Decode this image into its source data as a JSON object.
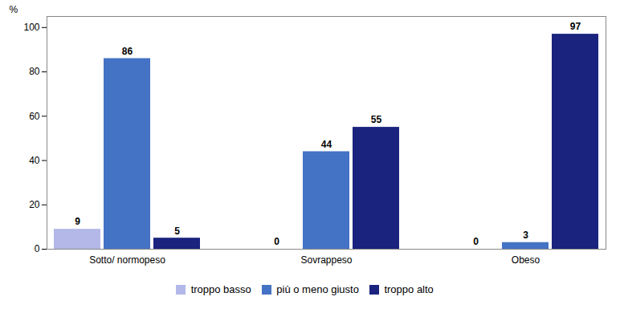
{
  "chart_data": {
    "type": "bar",
    "categories": [
      "Sotto/ normopeso",
      "Sovrappeso",
      "Obeso"
    ],
    "series": [
      {
        "name": "troppo basso",
        "color": "#b3b8e8",
        "values": [
          9,
          0,
          0
        ]
      },
      {
        "name": "più o meno giusto",
        "color": "#4472c4",
        "values": [
          86,
          44,
          3
        ]
      },
      {
        "name": "troppo alto",
        "color": "#1a237e",
        "values": [
          5,
          55,
          97
        ]
      }
    ],
    "ylabel": "%",
    "ylim": [
      0,
      105
    ],
    "yticks": [
      0,
      20,
      40,
      60,
      80,
      100
    ],
    "grid": false,
    "legend": "bottom",
    "data_labels": true
  }
}
